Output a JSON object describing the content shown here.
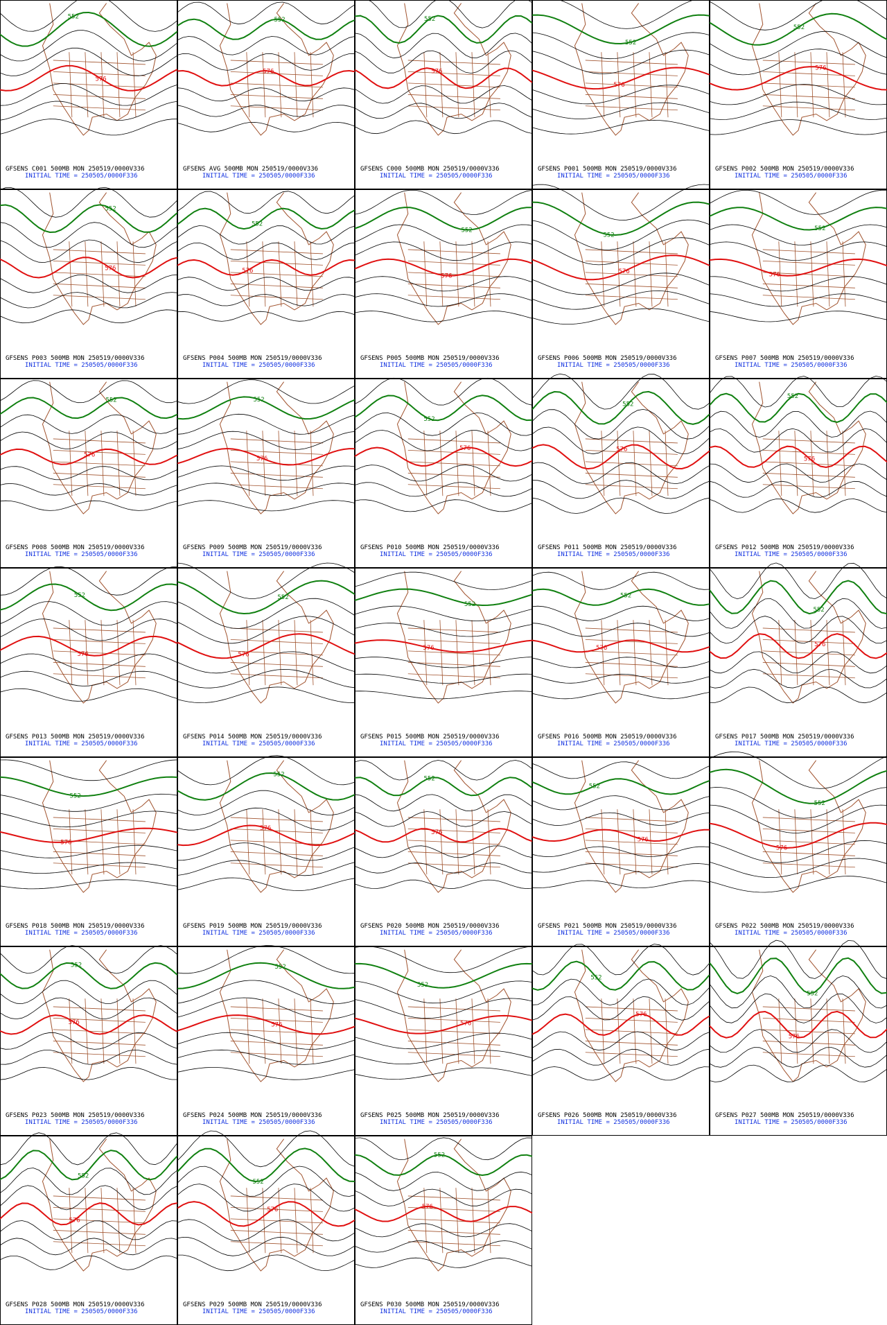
{
  "panels": [
    {
      "title": "GFSENS C001 500MB MON 250519/0000V336"
    },
    {
      "title": "GFSENS AVG 500MB MON 250519/0000V336"
    },
    {
      "title": "GFSENS C000 500MB MON 250519/0000V336"
    },
    {
      "title": "GFSENS P001 500MB MON 250519/0000V336"
    },
    {
      "title": "GFSENS P002 500MB MON 250519/0000V336"
    },
    {
      "title": "GFSENS P003 500MB MON 250519/0000V336"
    },
    {
      "title": "GFSENS P004 500MB MON 250519/0000V336"
    },
    {
      "title": "GFSENS P005 500MB MON 250519/0000V336"
    },
    {
      "title": "GFSENS P006 500MB MON 250519/0000V336"
    },
    {
      "title": "GFSENS P007 500MB MON 250519/0000V336"
    },
    {
      "title": "GFSENS P008 500MB MON 250519/0000V336"
    },
    {
      "title": "GFSENS P009 500MB MON 250519/0000V336"
    },
    {
      "title": "GFSENS P010 500MB MON 250519/0000V336"
    },
    {
      "title": "GFSENS P011 500MB MON 250519/0000V336"
    },
    {
      "title": "GFSENS P012 500MB MON 250519/0000V336"
    },
    {
      "title": "GFSENS P013 500MB MON 250519/0000V336"
    },
    {
      "title": "GFSENS P014 500MB MON 250519/0000V336"
    },
    {
      "title": "GFSENS P015 500MB MON 250519/0000V336"
    },
    {
      "title": "GFSENS P016 500MB MON 250519/0000V336"
    },
    {
      "title": "GFSENS P017 500MB MON 250519/0000V336"
    },
    {
      "title": "GFSENS P018 500MB MON 250519/0000V336"
    },
    {
      "title": "GFSENS P019 500MB MON 250519/0000V336"
    },
    {
      "title": "GFSENS P020 500MB MON 250519/0000V336"
    },
    {
      "title": "GFSENS P021 500MB MON 250519/0000V336"
    },
    {
      "title": "GFSENS P022 500MB MON 250519/0000V336"
    },
    {
      "title": "GFSENS P023 500MB MON 250519/0000V336"
    },
    {
      "title": "GFSENS P024 500MB MON 250519/0000V336"
    },
    {
      "title": "GFSENS P025 500MB MON 250519/0000V336"
    },
    {
      "title": "GFSENS P026 500MB MON 250519/0000V336"
    },
    {
      "title": "GFSENS P027 500MB MON 250519/0000V336"
    },
    {
      "title": "GFSENS P028 500MB MON 250519/0000V336"
    },
    {
      "title": "GFSENS P029 500MB MON 250519/0000V336"
    },
    {
      "title": "GFSENS P030 500MB MON 250519/0000V336"
    }
  ],
  "initial_time": "INITIAL TIME = 250505/0000F336",
  "contours": [
    {
      "label": "552",
      "color": "#108010"
    },
    {
      "label": "576",
      "color": "#e01010"
    }
  ]
}
